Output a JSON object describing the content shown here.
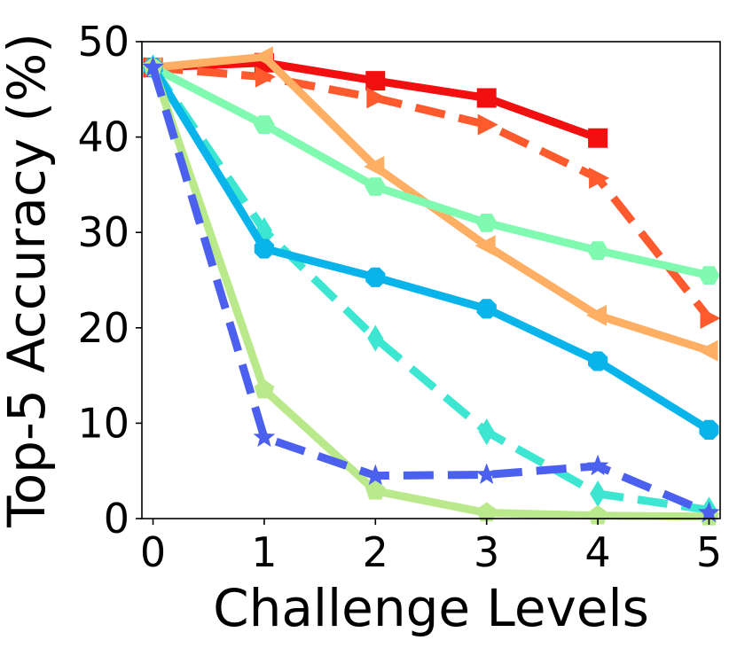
{
  "chart_data": {
    "type": "line",
    "title": "",
    "xlabel": "Challenge Levels",
    "ylabel": "Top-5 Accuracy (%)",
    "x": [
      0,
      1,
      2,
      3,
      4,
      5
    ],
    "x_ticks": [
      "0",
      "1",
      "2",
      "3",
      "4",
      "5"
    ],
    "y_ticks": [
      "0",
      "10",
      "20",
      "30",
      "40",
      "50"
    ],
    "xlim": [
      -0.1,
      5.1
    ],
    "ylim": [
      0,
      50
    ],
    "grid": false,
    "legend": "none",
    "series": [
      {
        "values": [
          47.3,
          47.8,
          45.9,
          44.1,
          39.9,
          null
        ],
        "color": "#f20f0f",
        "marker": "square",
        "dash": "solid"
      },
      {
        "values": [
          47.3,
          46.3,
          44.1,
          41.3,
          35.7,
          21.0
        ],
        "color": "#ff5a2d",
        "marker": "triangle-right",
        "dash": "dashed"
      },
      {
        "values": [
          47.3,
          48.4,
          36.9,
          28.6,
          21.3,
          17.6
        ],
        "color": "#ffaf64",
        "marker": "triangle-left",
        "dash": "solid"
      },
      {
        "values": [
          47.3,
          41.3,
          34.8,
          31.0,
          28.1,
          25.5
        ],
        "color": "#7ffab0",
        "marker": "hexagon",
        "dash": "solid"
      },
      {
        "values": [
          47.3,
          30.2,
          18.9,
          9.1,
          2.6,
          0.9
        ],
        "color": "#3de6d0",
        "marker": "thin-diamond",
        "dash": "dashed"
      },
      {
        "values": [
          47.3,
          28.3,
          25.3,
          22.0,
          16.5,
          9.3
        ],
        "color": "#09b4ea",
        "marker": "octagon",
        "dash": "solid"
      },
      {
        "values": [
          47.3,
          13.5,
          2.9,
          0.6,
          0.3,
          0.2
        ],
        "color": "#b9e98a",
        "marker": "pentagon",
        "dash": "solid"
      },
      {
        "values": [
          47.3,
          8.5,
          4.5,
          4.6,
          5.5,
          0.6
        ],
        "color": "#4b60ef",
        "marker": "star",
        "dash": "dashed"
      }
    ]
  }
}
